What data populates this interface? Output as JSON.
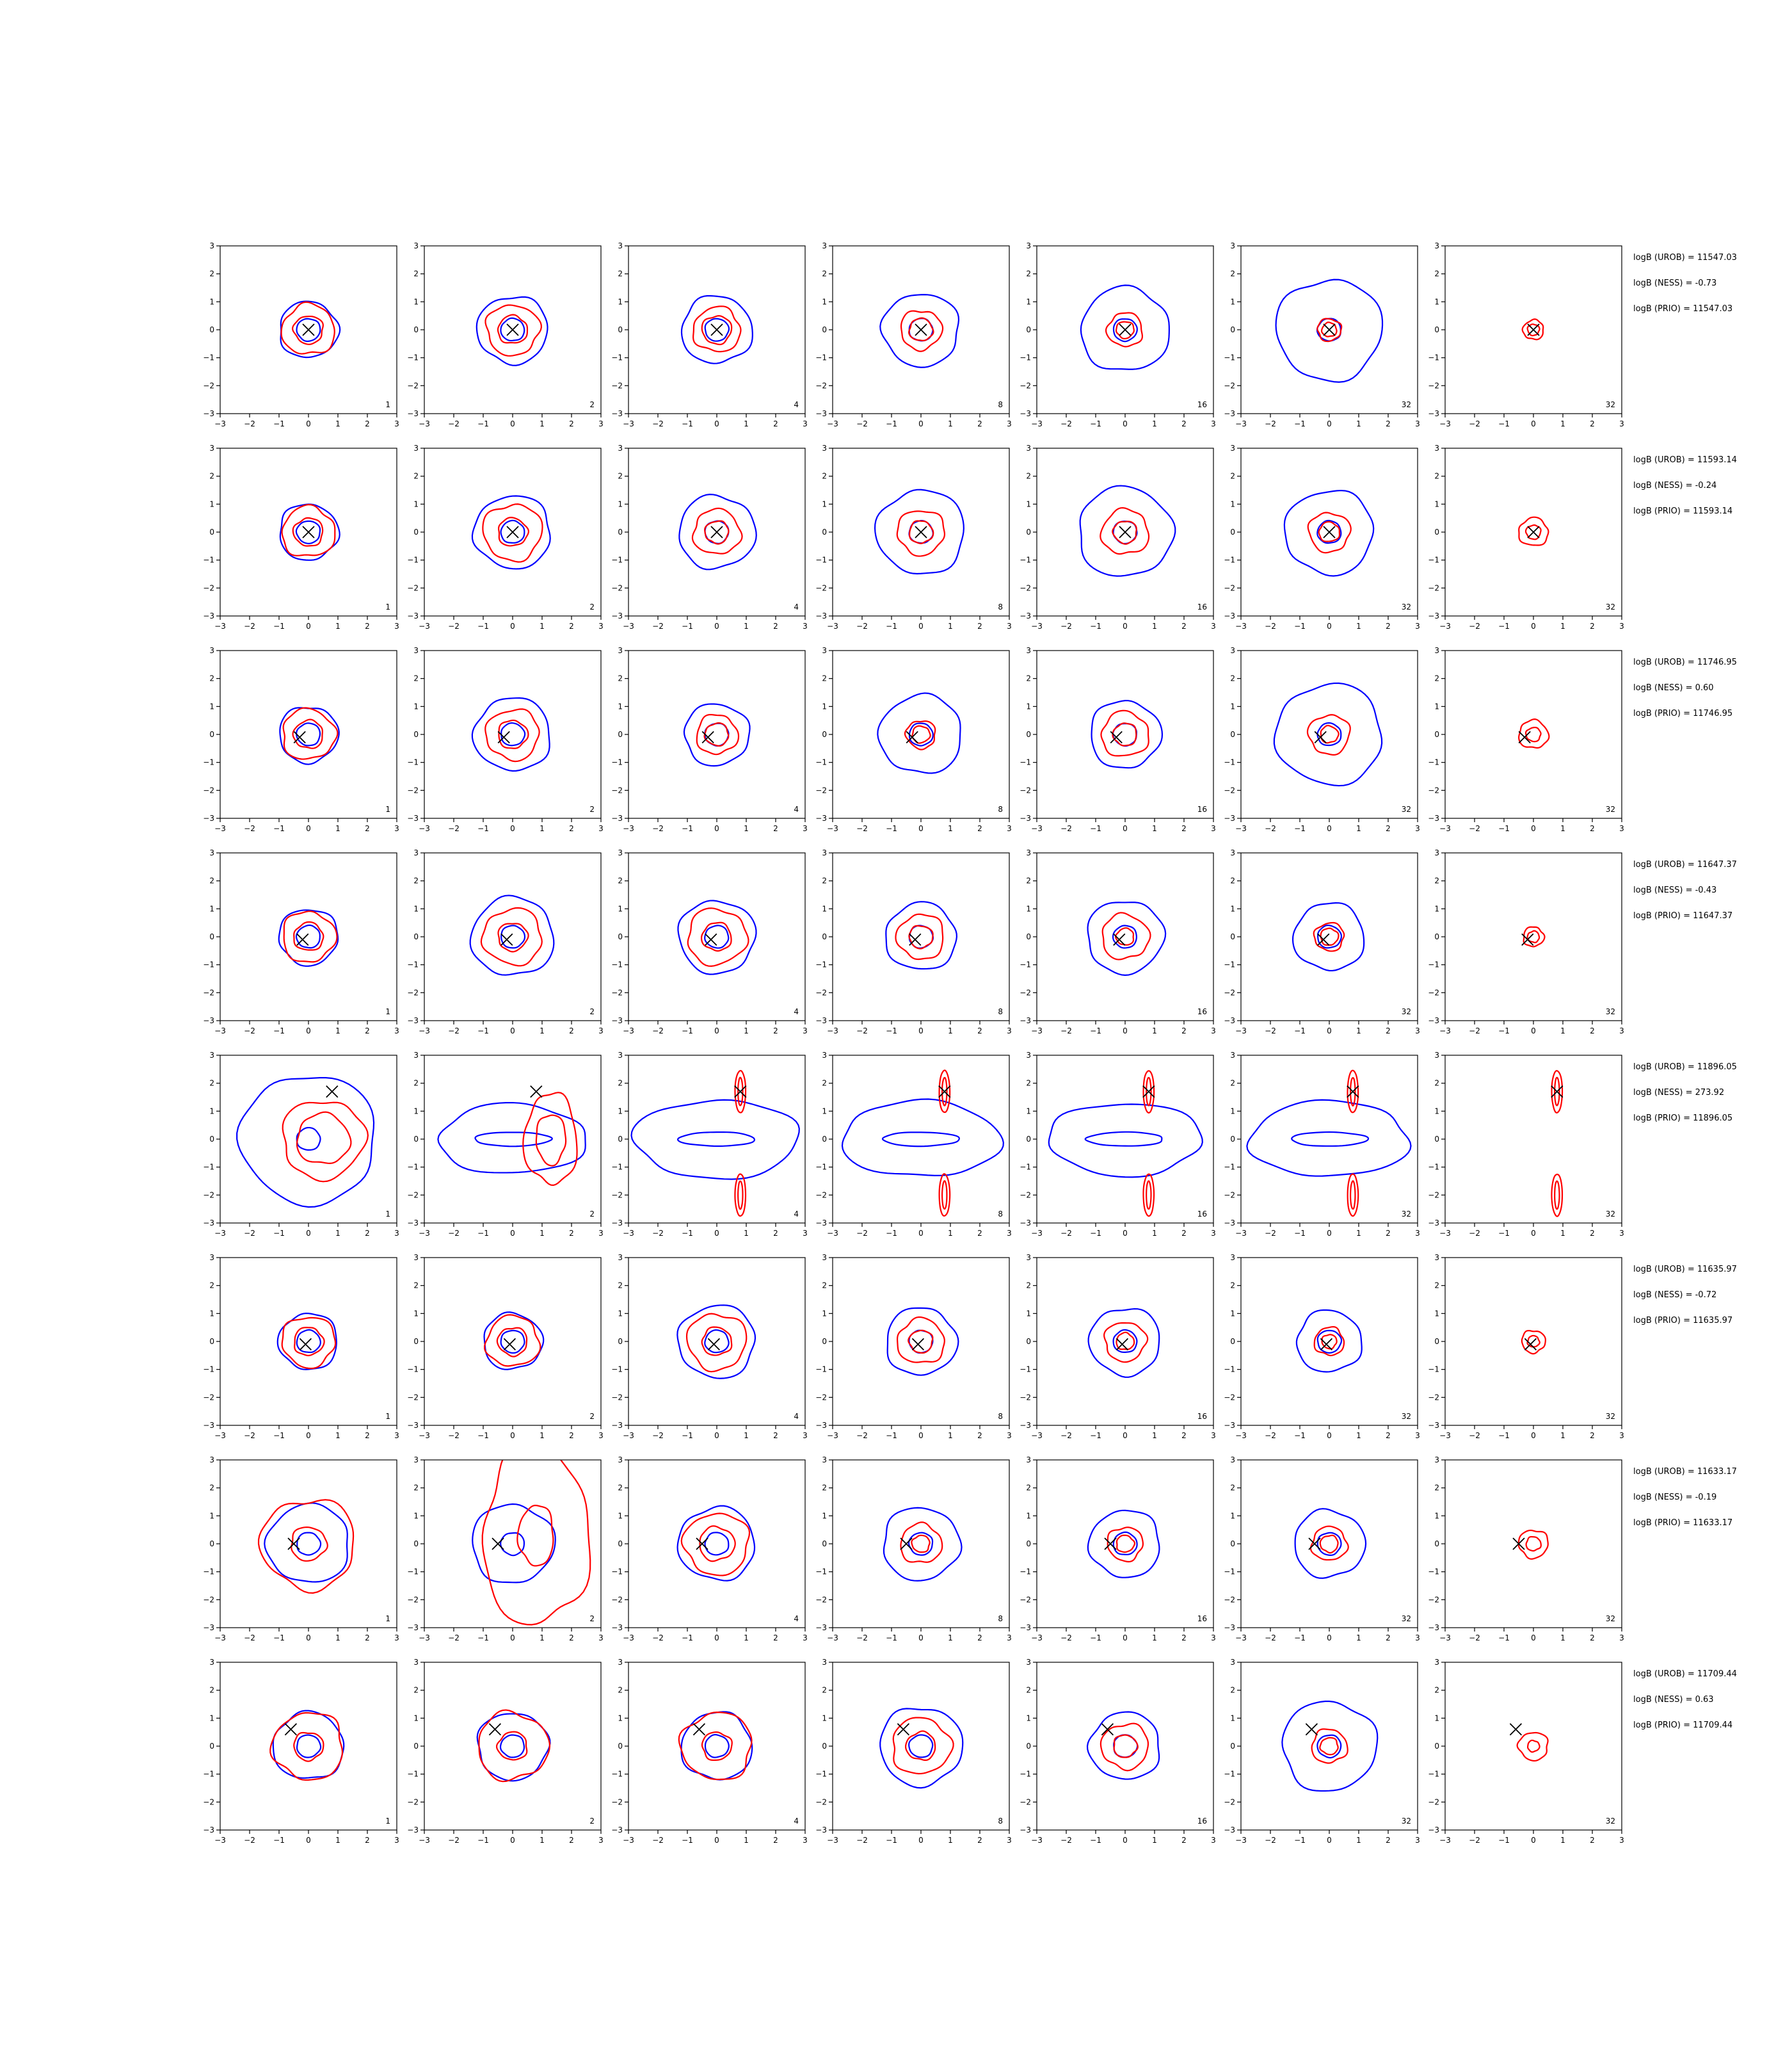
{
  "chart_data": {
    "type": "contour-grid",
    "layout": {
      "rows": 8,
      "cols": 7
    },
    "axes": {
      "xlim": [
        -3,
        3
      ],
      "ylim": [
        -3,
        3
      ],
      "xticks": [
        "−3",
        "−2",
        "−1",
        "0",
        "1",
        "2",
        "3"
      ],
      "yticks": [
        "3",
        "2",
        "1",
        "0",
        "−1",
        "−2",
        "−3"
      ],
      "tick_values": [
        -3,
        -2,
        -1,
        0,
        1,
        2,
        3
      ]
    },
    "column_labels": [
      "1",
      "2",
      "4",
      "8",
      "16",
      "32",
      "32"
    ],
    "colors": {
      "blue": "#0000ff",
      "red": "#ff0000",
      "marker": "#000000"
    },
    "rows": [
      {
        "marker": [
          0.0,
          0.0
        ],
        "blue": [
          1.0,
          1.2,
          1.2,
          1.3,
          1.5,
          1.8,
          0
        ],
        "red": [
          [
            0.9,
            0.5
          ],
          [
            0.9,
            0.5
          ],
          [
            0.8,
            0.5
          ],
          [
            0.7,
            0.4
          ],
          [
            0.6,
            0.3
          ],
          [
            0.4,
            0.25
          ],
          [
            0.35,
            0.2
          ]
        ],
        "text": [
          "logB (UROB) = 11547.03",
          "logB (NESS) = -0.73",
          "logB (PRIO) = 11547.03"
        ]
      },
      {
        "marker": [
          0.0,
          0.0
        ],
        "blue": [
          1.0,
          1.3,
          1.3,
          1.5,
          1.6,
          1.5,
          0
        ],
        "red": [
          [
            0.9,
            0.5
          ],
          [
            1.0,
            0.5
          ],
          [
            0.8,
            0.4
          ],
          [
            0.8,
            0.4
          ],
          [
            0.8,
            0.4
          ],
          [
            0.7,
            0.35
          ],
          [
            0.5,
            0.25
          ]
        ],
        "text": [
          "logB (UROB) = 11593.14",
          "logB (NESS) = -0.24",
          "logB (PRIO) = 11593.14"
        ]
      },
      {
        "marker": [
          -0.3,
          -0.1
        ],
        "blue": [
          1.0,
          1.3,
          1.1,
          1.4,
          1.2,
          1.8,
          0
        ],
        "red": [
          [
            0.9,
            0.5
          ],
          [
            0.9,
            0.5
          ],
          [
            0.7,
            0.4
          ],
          [
            0.5,
            0.3
          ],
          [
            0.8,
            0.4
          ],
          [
            0.7,
            0.3
          ],
          [
            0.5,
            0.25
          ]
        ],
        "text": [
          "logB (UROB) = 11746.95",
          "logB (NESS) = 0.60",
          "logB (PRIO) = 11746.95"
        ]
      },
      {
        "marker": [
          -0.2,
          -0.1
        ],
        "blue": [
          1.0,
          1.4,
          1.3,
          1.2,
          1.3,
          1.2,
          0
        ],
        "red": [
          [
            0.9,
            0.5
          ],
          [
            1.0,
            0.5
          ],
          [
            1.0,
            0.5
          ],
          [
            0.8,
            0.4
          ],
          [
            0.8,
            0.3
          ],
          [
            0.5,
            0.3
          ],
          [
            0.35,
            0.2
          ]
        ],
        "text": [
          "logB (UROB) = 11647.37",
          "logB (NESS) = -0.43",
          "logB (PRIO) = 11647.37"
        ]
      },
      {
        "marker": [
          0.8,
          1.7
        ],
        "blue": [
          2.3,
          2.5,
          2.8,
          2.7,
          2.6,
          2.7,
          0
        ],
        "red": [
          [
            1.4,
            0.9
          ],
          [
            0.9,
            0.5
          ],
          [
            0.2,
            0.1
          ],
          [
            0.2,
            0.1
          ],
          [
            0.2,
            0.1
          ],
          [
            0.2,
            0.1
          ],
          [
            0.2,
            0.1
          ]
        ],
        "text": [
          "logB (UROB) = 11896.05",
          "logB (NESS) = 273.92",
          "logB (PRIO) = 11896.05"
        ]
      },
      {
        "marker": [
          -0.1,
          -0.1
        ],
        "blue": [
          1.0,
          1.0,
          1.3,
          1.2,
          1.2,
          1.1,
          0
        ],
        "red": [
          [
            0.9,
            0.5
          ],
          [
            0.9,
            0.5
          ],
          [
            1.0,
            0.5
          ],
          [
            0.8,
            0.4
          ],
          [
            0.7,
            0.3
          ],
          [
            0.5,
            0.25
          ],
          [
            0.4,
            0.2
          ]
        ],
        "text": [
          "logB (UROB) = 11635.97",
          "logB (NESS) = -0.72",
          "logB (PRIO) = 11635.97"
        ]
      },
      {
        "marker": [
          -0.5,
          0.0
        ],
        "blue": [
          1.4,
          1.4,
          1.3,
          1.3,
          1.2,
          1.2,
          0
        ],
        "red": [
          [
            1.6,
            0.6
          ],
          [
            1.8,
            0.6
          ],
          [
            1.1,
            0.6
          ],
          [
            0.7,
            0.3
          ],
          [
            0.6,
            0.3
          ],
          [
            0.6,
            0.3
          ],
          [
            0.5,
            0.25
          ]
        ],
        "text": [
          "logB (UROB) = 11633.17",
          "logB (NESS) = -0.19",
          "logB (PRIO) = 11633.17"
        ]
      },
      {
        "marker": [
          -0.6,
          0.6
        ],
        "blue": [
          1.2,
          1.2,
          1.2,
          1.4,
          1.2,
          1.6,
          0
        ],
        "red": [
          [
            1.2,
            0.5
          ],
          [
            1.2,
            0.5
          ],
          [
            1.2,
            0.5
          ],
          [
            1.0,
            0.5
          ],
          [
            0.8,
            0.4
          ],
          [
            0.6,
            0.3
          ],
          [
            0.5,
            0.2
          ]
        ],
        "text": [
          "logB (UROB) = 11709.44",
          "logB (NESS) = 0.63",
          "logB (PRIO) = 11709.44"
        ]
      }
    ]
  }
}
